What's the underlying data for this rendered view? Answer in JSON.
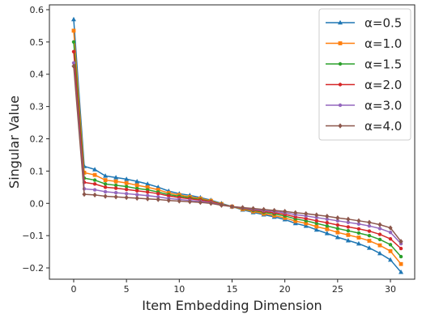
{
  "chart_data": {
    "type": "line",
    "title": "",
    "xlabel": "Item Embedding Dimension",
    "ylabel": "Singular Value",
    "xlim": [
      -2.3,
      32.3
    ],
    "ylim": [
      -0.235,
      0.615
    ],
    "xticks": [
      0,
      5,
      10,
      15,
      20,
      25,
      30
    ],
    "xtick_labels": [
      "0",
      "5",
      "10",
      "15",
      "20",
      "25",
      "30"
    ],
    "yticks": [
      -0.2,
      -0.1,
      0.0,
      0.1,
      0.2,
      0.3,
      0.4,
      0.5,
      0.6
    ],
    "ytick_labels": [
      "−0.2",
      "−0.1",
      "0.0",
      "0.1",
      "0.2",
      "0.3",
      "0.4",
      "0.5",
      "0.6"
    ],
    "grid": false,
    "legend_position": "top-right",
    "x": [
      0,
      1,
      2,
      3,
      4,
      5,
      6,
      7,
      8,
      9,
      10,
      11,
      12,
      13,
      14,
      15,
      16,
      17,
      18,
      19,
      20,
      21,
      22,
      23,
      24,
      25,
      26,
      27,
      28,
      29,
      30,
      31
    ],
    "series": [
      {
        "name": "α=0.5",
        "color": "#1f77b4",
        "marker": "triangle",
        "values": [
          0.57,
          0.115,
          0.105,
          0.085,
          0.08,
          0.075,
          0.068,
          0.06,
          0.05,
          0.038,
          0.03,
          0.025,
          0.018,
          0.01,
          0.0,
          -0.01,
          -0.02,
          -0.028,
          -0.035,
          -0.042,
          -0.05,
          -0.062,
          -0.07,
          -0.082,
          -0.093,
          -0.105,
          -0.115,
          -0.125,
          -0.138,
          -0.155,
          -0.175,
          -0.213
        ]
      },
      {
        "name": "α=1.0",
        "color": "#ff7f0e",
        "marker": "square",
        "values": [
          0.535,
          0.095,
          0.088,
          0.072,
          0.068,
          0.063,
          0.056,
          0.05,
          0.042,
          0.032,
          0.026,
          0.02,
          0.015,
          0.008,
          -0.002,
          -0.01,
          -0.018,
          -0.025,
          -0.032,
          -0.038,
          -0.045,
          -0.055,
          -0.062,
          -0.072,
          -0.08,
          -0.09,
          -0.098,
          -0.106,
          -0.116,
          -0.13,
          -0.148,
          -0.188
        ]
      },
      {
        "name": "α=1.5",
        "color": "#2ca02c",
        "marker": "circle",
        "values": [
          0.5,
          0.078,
          0.072,
          0.06,
          0.056,
          0.052,
          0.046,
          0.042,
          0.035,
          0.027,
          0.022,
          0.017,
          0.012,
          0.006,
          -0.003,
          -0.01,
          -0.016,
          -0.022,
          -0.028,
          -0.033,
          -0.039,
          -0.048,
          -0.054,
          -0.062,
          -0.07,
          -0.078,
          -0.085,
          -0.092,
          -0.1,
          -0.112,
          -0.128,
          -0.165
        ]
      },
      {
        "name": "α=2.0",
        "color": "#d62728",
        "marker": "circle",
        "values": [
          0.47,
          0.065,
          0.06,
          0.05,
          0.047,
          0.043,
          0.039,
          0.035,
          0.03,
          0.023,
          0.018,
          0.014,
          0.01,
          0.005,
          -0.004,
          -0.01,
          -0.015,
          -0.02,
          -0.025,
          -0.029,
          -0.034,
          -0.042,
          -0.047,
          -0.054,
          -0.06,
          -0.067,
          -0.073,
          -0.079,
          -0.086,
          -0.096,
          -0.11,
          -0.14
        ]
      },
      {
        "name": "α=3.0",
        "color": "#9467bd",
        "marker": "circle",
        "values": [
          0.435,
          0.045,
          0.042,
          0.036,
          0.033,
          0.03,
          0.027,
          0.024,
          0.02,
          0.015,
          0.012,
          0.009,
          0.006,
          0.002,
          -0.005,
          -0.01,
          -0.014,
          -0.018,
          -0.022,
          -0.025,
          -0.029,
          -0.035,
          -0.039,
          -0.044,
          -0.049,
          -0.054,
          -0.059,
          -0.064,
          -0.07,
          -0.078,
          -0.09,
          -0.125
        ]
      },
      {
        "name": "α=4.0",
        "color": "#8c564b",
        "marker": "diamond",
        "values": [
          0.425,
          0.028,
          0.026,
          0.022,
          0.02,
          0.018,
          0.016,
          0.014,
          0.012,
          0.009,
          0.007,
          0.005,
          0.003,
          0.0,
          -0.006,
          -0.01,
          -0.013,
          -0.016,
          -0.019,
          -0.022,
          -0.025,
          -0.029,
          -0.032,
          -0.036,
          -0.04,
          -0.045,
          -0.049,
          -0.054,
          -0.059,
          -0.066,
          -0.076,
          -0.118
        ]
      }
    ]
  }
}
